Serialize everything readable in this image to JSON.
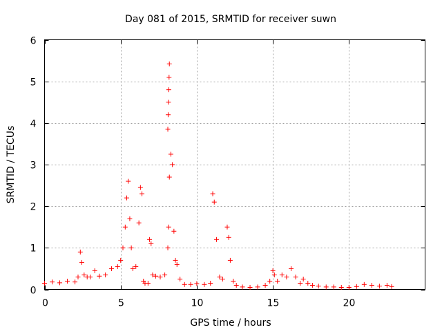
{
  "chart_data": {
    "type": "scatter",
    "title": "Day 081 of 2015, SRMTID for receiver suwn",
    "xlabel": "GPS time / hours",
    "ylabel": "SRMTID / TECUs",
    "xlim": [
      0,
      25
    ],
    "ylim": [
      0,
      6
    ],
    "xticks": [
      0,
      5,
      10,
      15,
      20
    ],
    "xtick_labels": [
      "0",
      "5",
      "10",
      "15",
      "20"
    ],
    "yticks": [
      0,
      1,
      2,
      3,
      4,
      5,
      6
    ],
    "ytick_labels": [
      "0",
      "1",
      "2",
      "3",
      "4",
      "5",
      "6"
    ],
    "grid": true,
    "marker": "+",
    "color": "#ff0000",
    "series": [
      {
        "name": "SRMTID",
        "x": [
          0.0,
          0.5,
          1.0,
          1.5,
          2.0,
          2.2,
          2.35,
          2.45,
          2.6,
          2.8,
          3.0,
          3.3,
          3.6,
          4.0,
          4.4,
          4.8,
          5.0,
          5.15,
          5.3,
          5.4,
          5.5,
          5.6,
          5.7,
          5.8,
          6.0,
          6.2,
          6.3,
          6.4,
          6.5,
          6.6,
          6.8,
          6.9,
          7.0,
          7.1,
          7.3,
          7.6,
          7.9,
          8.1,
          8.15,
          8.2,
          8.3,
          8.4,
          8.5,
          8.6,
          8.7,
          8.9,
          9.2,
          9.6,
          10.0,
          10.5,
          10.9,
          11.05,
          11.15,
          11.3,
          11.5,
          11.7,
          12.0,
          12.1,
          12.2,
          12.4,
          12.6,
          13.0,
          13.5,
          14.0,
          14.5,
          14.8,
          15.0,
          15.1,
          15.3,
          15.6,
          15.9,
          16.2,
          16.5,
          16.8,
          17.0,
          17.3,
          17.6,
          18.0,
          18.5,
          19.0,
          19.5,
          20.0,
          20.5,
          21.0,
          21.5,
          22.0,
          22.5,
          22.8,
          8.1,
          8.12,
          8.14,
          8.16,
          8.18,
          8.2
        ],
        "y": [
          0.15,
          0.18,
          0.16,
          0.2,
          0.18,
          0.3,
          0.9,
          0.65,
          0.35,
          0.3,
          0.3,
          0.45,
          0.32,
          0.35,
          0.5,
          0.55,
          0.7,
          1.0,
          1.5,
          2.2,
          2.6,
          1.7,
          1.0,
          0.5,
          0.55,
          1.6,
          2.45,
          2.3,
          0.2,
          0.15,
          0.15,
          1.2,
          1.1,
          0.35,
          0.32,
          0.3,
          0.35,
          1.0,
          1.5,
          2.7,
          3.25,
          3.0,
          1.4,
          0.7,
          0.6,
          0.25,
          0.12,
          0.12,
          0.14,
          0.12,
          0.15,
          2.3,
          2.1,
          1.2,
          0.3,
          0.25,
          1.5,
          1.25,
          0.7,
          0.2,
          0.1,
          0.06,
          0.05,
          0.06,
          0.1,
          0.2,
          0.45,
          0.35,
          0.2,
          0.35,
          0.3,
          0.5,
          0.3,
          0.15,
          0.25,
          0.15,
          0.1,
          0.08,
          0.06,
          0.06,
          0.05,
          0.05,
          0.07,
          0.12,
          0.1,
          0.08,
          0.1,
          0.07,
          3.85,
          4.2,
          4.5,
          4.8,
          5.1,
          5.42
        ]
      }
    ]
  }
}
